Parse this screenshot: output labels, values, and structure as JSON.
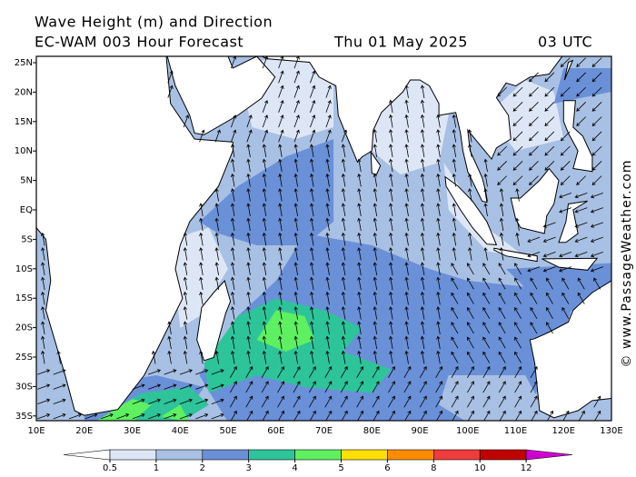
{
  "header": {
    "title": "Wave Height (m) and Direction",
    "subtitle": "EC-WAM 003 Hour Forecast",
    "date": "Thu 01 May 2025",
    "time": "03 UTC"
  },
  "lat_labels": [
    "25N",
    "20N",
    "15N",
    "10N",
    "5N",
    "EQ",
    "5S",
    "10S",
    "15S",
    "20S",
    "25S",
    "30S",
    "35S"
  ],
  "lon_labels": [
    "10E",
    "20E",
    "30E",
    "40E",
    "50E",
    "60E",
    "70E",
    "80E",
    "90E",
    "100E",
    "110E",
    "120E",
    "130E"
  ],
  "legend": {
    "ticks": [
      0.5,
      1,
      2,
      3,
      4,
      5,
      6,
      8,
      10,
      12
    ],
    "colors": [
      "#dde6f5",
      "#a8c0e4",
      "#6a90d8",
      "#2ec49a",
      "#5ef060",
      "#ffe000",
      "#ff8c00",
      "#f03c3c",
      "#c00000"
    ],
    "under_color": "#ffffff",
    "over_color": "#d000d0"
  },
  "credit": "© www.PassageWeather.com"
}
